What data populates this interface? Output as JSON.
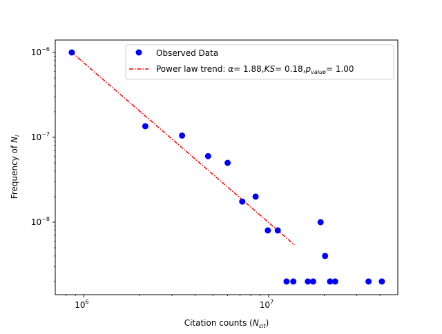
{
  "chart_data": {
    "type": "scatter",
    "xscale": "log",
    "yscale": "log",
    "xlim": [
      700000,
      50000000
    ],
    "ylim": [
      1.4e-09,
      1.4e-06
    ],
    "xlabel": "Citation counts (N_cit)",
    "ylabel": "Frequency of N_i",
    "x_ticks": [
      {
        "value": 1000000,
        "base": "10",
        "exp": "6"
      },
      {
        "value": 10000000,
        "base": "10",
        "exp": "7"
      }
    ],
    "y_ticks": [
      {
        "value": 1e-08,
        "base": "10",
        "exp": "−8"
      },
      {
        "value": 1e-07,
        "base": "10",
        "exp": "−7"
      },
      {
        "value": 1e-06,
        "base": "10",
        "exp": "−6"
      }
    ],
    "series": [
      {
        "name": "Observed Data",
        "color": "#0000ff",
        "marker": "circle",
        "x": [
          860000,
          2150000,
          3400000,
          4700000,
          6000000,
          7200000,
          8500000,
          9900000,
          11200000,
          12500000,
          13600000,
          16300000,
          17400000,
          19100000,
          20200000,
          21500000,
          22900000,
          34700000,
          41000000
        ],
        "y": [
          1e-06,
          1.35e-07,
          1.05e-07,
          6e-08,
          5e-08,
          1.75e-08,
          2e-08,
          8e-09,
          8e-09,
          2e-09,
          2e-09,
          2e-09,
          2e-09,
          1e-08,
          4e-09,
          2e-09,
          2e-09,
          2e-09,
          2e-09
        ]
      },
      {
        "name": "Power law trend",
        "color": "#ff0000",
        "style": "dashdot",
        "x": [
          860000,
          13800000
        ],
        "y": [
          1e-06,
          5.4e-09
        ]
      }
    ],
    "legend": {
      "position": "top-right",
      "observed_label": "Observed Data",
      "trend_label_prefix": "Power law trend: ",
      "alpha_symbol": "α",
      "alpha_value": "= 1.88,",
      "ks_symbol": "KS",
      "ks_value": "= 0.18,",
      "p_symbol": "p",
      "p_subscript": "value",
      "p_value": "= 1.00"
    },
    "xlabel_parts": {
      "main": "Citation counts (",
      "sym": "N",
      "sub": "cit",
      "close": ")"
    },
    "ylabel_parts": {
      "main": "Frequency of ",
      "sym": "N",
      "sub": "i"
    }
  }
}
